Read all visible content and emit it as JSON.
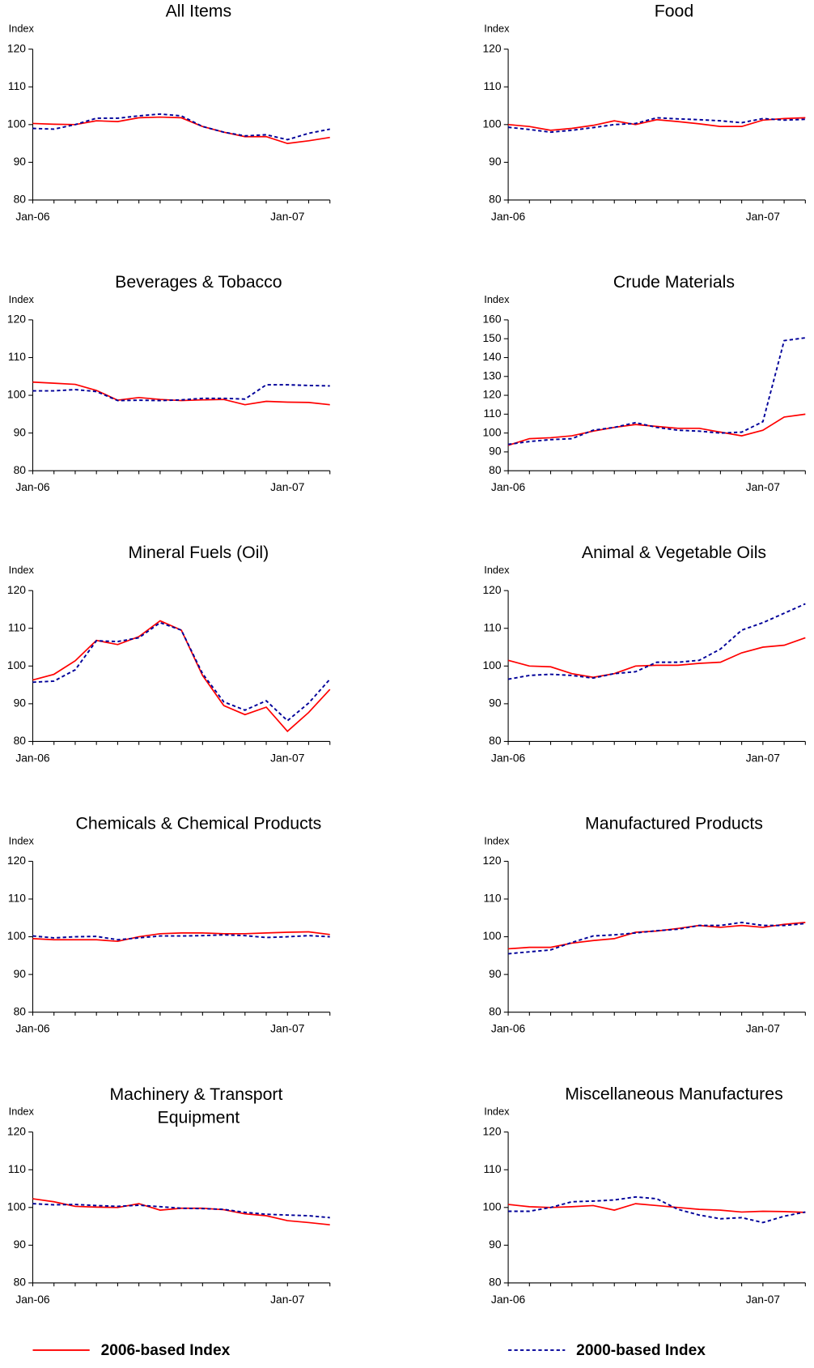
{
  "chart_data": [
    {
      "type": "line",
      "title": "All Items",
      "y_label": "Index",
      "categories": [
        "Jan-06",
        null,
        null,
        null,
        null,
        null,
        null,
        null,
        null,
        null,
        null,
        null,
        "Jan-07",
        null,
        null
      ],
      "ylim": [
        80,
        120
      ],
      "yticks": [
        80,
        90,
        100,
        110,
        120
      ],
      "series": [
        {
          "name": "2006-based Index",
          "color": "#ff0000",
          "values": [
            100.3,
            100.1,
            100,
            101,
            100.8,
            101.8,
            102,
            101.8,
            99.5,
            98,
            96.8,
            96.8,
            95,
            95.7,
            96.6
          ]
        },
        {
          "name": "2000-based Index",
          "color": "#000099",
          "dashed": true,
          "values": [
            99,
            98.8,
            100,
            101.7,
            101.7,
            102.3,
            102.8,
            102.3,
            99.5,
            98,
            97,
            97.3,
            96,
            97.7,
            98.8
          ]
        }
      ]
    },
    {
      "type": "line",
      "title": "Food",
      "y_label": "Index",
      "categories": [
        "Jan-06",
        null,
        null,
        null,
        null,
        null,
        null,
        null,
        null,
        null,
        null,
        null,
        "Jan-07",
        null,
        null
      ],
      "ylim": [
        80,
        120
      ],
      "yticks": [
        80,
        90,
        100,
        110,
        120
      ],
      "series": [
        {
          "color": "#ff0000",
          "values": [
            100,
            99.5,
            98.5,
            99,
            99.8,
            101,
            100,
            101.3,
            100.8,
            100.2,
            99.5,
            99.5,
            101.2,
            101.6,
            101.8
          ]
        },
        {
          "color": "#000099",
          "dashed": true,
          "values": [
            99.3,
            98.7,
            98,
            98.5,
            99.2,
            100,
            100.3,
            101.8,
            101.5,
            101.3,
            101,
            100.5,
            101.6,
            101.2,
            101.4
          ]
        }
      ]
    },
    {
      "type": "line",
      "title": "Beverages & Tobacco",
      "y_label": "Index",
      "categories": [
        "Jan-06",
        null,
        null,
        null,
        null,
        null,
        null,
        null,
        null,
        null,
        null,
        null,
        "Jan-07",
        null,
        null
      ],
      "ylim": [
        80,
        120
      ],
      "yticks": [
        80,
        90,
        100,
        110,
        120
      ],
      "series": [
        {
          "color": "#ff0000",
          "values": [
            103.5,
            103.2,
            102.9,
            101.3,
            98.7,
            99.4,
            98.9,
            98.6,
            98.8,
            98.9,
            97.5,
            98.4,
            98.2,
            98.1,
            97.5
          ]
        },
        {
          "color": "#000099",
          "dashed": true,
          "values": [
            101.2,
            101.2,
            101.5,
            101,
            98.6,
            98.7,
            98.6,
            98.8,
            99.2,
            99.2,
            99,
            102.8,
            102.8,
            102.6,
            102.5
          ]
        }
      ]
    },
    {
      "type": "line",
      "title": "Crude Materials",
      "y_label": "Index",
      "categories": [
        "Jan-06",
        null,
        null,
        null,
        null,
        null,
        null,
        null,
        null,
        null,
        null,
        null,
        "Jan-07",
        null,
        null
      ],
      "ylim": [
        80,
        160
      ],
      "yticks": [
        80,
        90,
        100,
        110,
        120,
        130,
        140,
        150,
        160
      ],
      "series": [
        {
          "color": "#ff0000",
          "values": [
            93.5,
            97,
            97.5,
            98.5,
            101,
            103,
            104.5,
            103.5,
            102.5,
            102.5,
            100.5,
            98.5,
            101.5,
            108.5,
            110
          ]
        },
        {
          "color": "#000099",
          "dashed": true,
          "values": [
            94,
            95.5,
            96.5,
            97,
            101.5,
            103,
            105.5,
            103,
            101.5,
            101,
            100,
            100.5,
            106,
            149,
            150.5
          ]
        }
      ]
    },
    {
      "type": "line",
      "title": "Mineral Fuels (Oil)",
      "y_label": "Index",
      "categories": [
        "Jan-06",
        null,
        null,
        null,
        null,
        null,
        null,
        null,
        null,
        null,
        null,
        null,
        "Jan-07",
        null,
        null
      ],
      "ylim": [
        80,
        120
      ],
      "yticks": [
        80,
        90,
        100,
        110,
        120
      ],
      "series": [
        {
          "color": "#ff0000",
          "values": [
            96.3,
            97.8,
            101.4,
            106.8,
            105.7,
            107.8,
            112,
            109.5,
            97.5,
            89.5,
            87.1,
            89.1,
            82.7,
            87.7,
            93.8
          ]
        },
        {
          "color": "#000099",
          "dashed": true,
          "values": [
            95.7,
            96,
            99,
            106.7,
            106.5,
            107.5,
            111.5,
            109.5,
            98,
            90.5,
            88.3,
            90.8,
            85.5,
            90.2,
            96.5
          ]
        }
      ]
    },
    {
      "type": "line",
      "title": "Animal & Vegetable Oils",
      "y_label": "Index",
      "categories": [
        "Jan-06",
        null,
        null,
        null,
        null,
        null,
        null,
        null,
        null,
        null,
        null,
        null,
        "Jan-07",
        null,
        null
      ],
      "ylim": [
        80,
        120
      ],
      "yticks": [
        80,
        90,
        100,
        110,
        120
      ],
      "series": [
        {
          "color": "#ff0000",
          "values": [
            101.5,
            100,
            99.8,
            98,
            97,
            98,
            100,
            100.2,
            100.2,
            100.7,
            101,
            103.5,
            105,
            105.5,
            107.5
          ]
        },
        {
          "color": "#000099",
          "dashed": true,
          "values": [
            96.5,
            97.5,
            97.8,
            97.5,
            96.8,
            98,
            98.5,
            101,
            101,
            101.5,
            104.5,
            109.5,
            111.5,
            114,
            116.5
          ]
        }
      ]
    },
    {
      "type": "line",
      "title": "Chemicals & Chemical Products",
      "y_label": "Index",
      "categories": [
        "Jan-06",
        null,
        null,
        null,
        null,
        null,
        null,
        null,
        null,
        null,
        null,
        null,
        "Jan-07",
        null,
        null
      ],
      "ylim": [
        80,
        120
      ],
      "yticks": [
        80,
        90,
        100,
        110,
        120
      ],
      "series": [
        {
          "color": "#ff0000",
          "values": [
            99.5,
            99.2,
            99.2,
            99.2,
            98.8,
            100,
            100.8,
            101,
            101,
            100.8,
            100.8,
            101,
            101.2,
            101.3,
            100.6
          ]
        },
        {
          "color": "#000099",
          "dashed": true,
          "values": [
            100.2,
            99.7,
            100,
            100.1,
            99.2,
            99.7,
            100.2,
            100.2,
            100.3,
            100.5,
            100.3,
            99.8,
            100,
            100.3,
            100
          ]
        }
      ]
    },
    {
      "type": "line",
      "title": "Manufactured Products",
      "y_label": "Index",
      "categories": [
        "Jan-06",
        null,
        null,
        null,
        null,
        null,
        null,
        null,
        null,
        null,
        null,
        null,
        "Jan-07",
        null,
        null
      ],
      "ylim": [
        80,
        120
      ],
      "yticks": [
        80,
        90,
        100,
        110,
        120
      ],
      "series": [
        {
          "color": "#ff0000",
          "values": [
            96.8,
            97.2,
            97.2,
            98.3,
            99,
            99.5,
            101.2,
            101.5,
            102.2,
            103,
            102.5,
            103,
            102.5,
            103.3,
            103.8
          ]
        },
        {
          "color": "#000099",
          "dashed": true,
          "values": [
            95.5,
            96,
            96.5,
            98.5,
            100.2,
            100.5,
            101,
            101.6,
            102,
            103,
            103,
            103.8,
            103,
            103,
            103.5
          ]
        }
      ]
    },
    {
      "type": "line",
      "title": "Machinery & Transport Equipment",
      "y_label": "Index",
      "categories": [
        "Jan-06",
        null,
        null,
        null,
        null,
        null,
        null,
        null,
        null,
        null,
        null,
        null,
        "Jan-07",
        null,
        null
      ],
      "ylim": [
        80,
        120
      ],
      "yticks": [
        80,
        90,
        100,
        110,
        120
      ],
      "series": [
        {
          "color": "#ff0000",
          "values": [
            102.3,
            101.5,
            100.3,
            100.1,
            100,
            101,
            99.3,
            99.8,
            99.8,
            99.4,
            98.3,
            97.8,
            96.5,
            96,
            95.4
          ]
        },
        {
          "color": "#000099",
          "dashed": true,
          "values": [
            101,
            100.7,
            100.8,
            100.5,
            100.3,
            100.6,
            100.2,
            99.8,
            99.7,
            99.5,
            98.7,
            98.2,
            98,
            97.8,
            97.3
          ]
        }
      ]
    },
    {
      "type": "line",
      "title": "Miscellaneous Manufactures",
      "y_label": "Index",
      "categories": [
        "Jan-06",
        null,
        null,
        null,
        null,
        null,
        null,
        null,
        null,
        null,
        null,
        null,
        "Jan-07",
        null,
        null
      ],
      "ylim": [
        80,
        120
      ],
      "yticks": [
        80,
        90,
        100,
        110,
        120
      ],
      "series": [
        {
          "color": "#ff0000",
          "values": [
            100.8,
            100.2,
            100,
            100.2,
            100.5,
            99.3,
            101,
            100.5,
            100,
            99.5,
            99.3,
            98.8,
            99,
            98.9,
            98.7
          ]
        },
        {
          "color": "#000099",
          "dashed": true,
          "values": [
            99,
            99,
            100,
            101.5,
            101.7,
            102,
            102.8,
            102.3,
            99.5,
            98,
            97,
            97.3,
            96,
            97.7,
            98.8
          ]
        }
      ]
    }
  ]
}
